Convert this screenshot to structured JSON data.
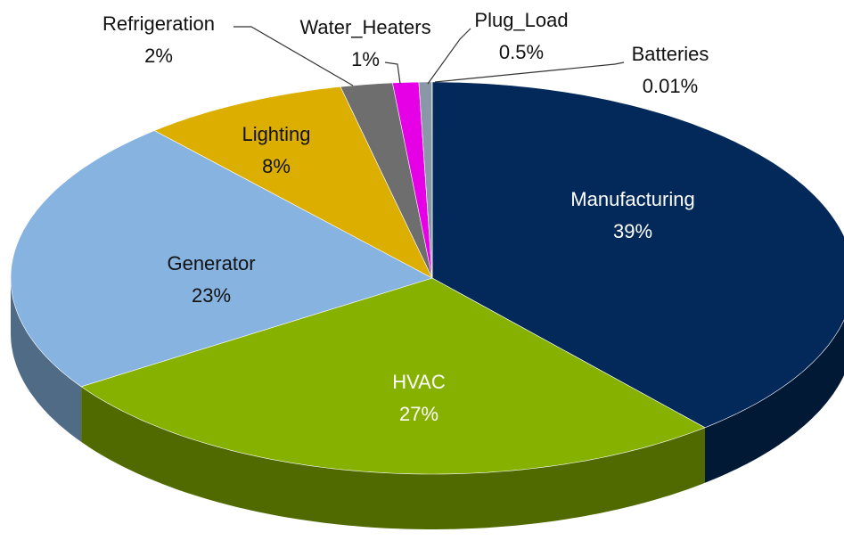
{
  "chart_data": {
    "type": "pie",
    "categories": [
      "Manufacturing",
      "HVAC",
      "Generator",
      "Lighting",
      "Refrigeration",
      "Water_Heaters",
      "Plug_Load",
      "Batteries"
    ],
    "values": [
      39,
      27,
      23,
      8,
      2,
      1,
      0.5,
      0.01
    ],
    "value_labels": [
      "39%",
      "27%",
      "23%",
      "8%",
      "2%",
      "1%",
      "0.5%",
      "0.01%"
    ],
    "colors": [
      "#03295a",
      "#86b100",
      "#86b3df",
      "#dcae00",
      "#6e6e6e",
      "#e600e6",
      "#8a97a6",
      "#4a6fa5"
    ]
  }
}
